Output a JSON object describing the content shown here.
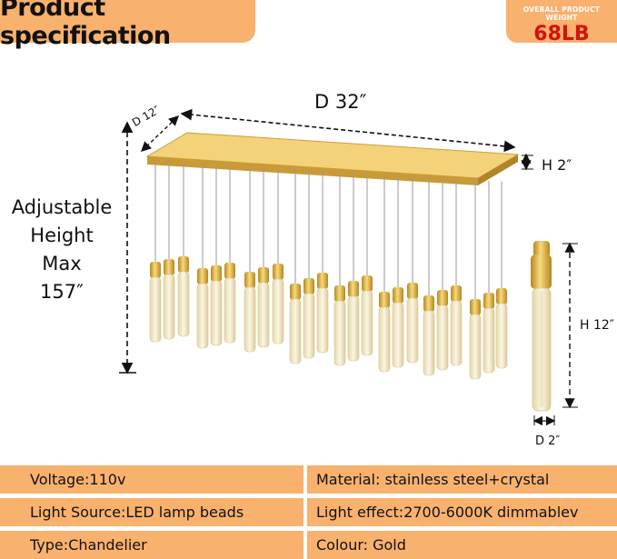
{
  "header": {
    "title": "Product specification",
    "weight_label": "OVERALL PRODUCT WEIGHT",
    "weight_value": "68LB"
  },
  "dimensions": {
    "depth_32": "D 32″",
    "depth_12": "D 12″",
    "height_canopy": "H 2″",
    "height_pendant": "H 12″",
    "depth_pendant": "D 2″"
  },
  "adjustable": {
    "line1": "Adjustable",
    "line2": "Height",
    "line3": "Max",
    "line4": "157″"
  },
  "specs": [
    {
      "left": "Voltage:110v",
      "right": "Material: stainless steel+crystal"
    },
    {
      "left": "Light Source:LED lamp beads",
      "right": "Light effect:2700-6000K dimmablev"
    },
    {
      "left": "Type:Chandelier",
      "right": "Colour: Gold"
    }
  ],
  "colors": {
    "banner": "#f9b16e",
    "weight_value": "#d4120c",
    "gold": "#e3b84a",
    "crystal": "#f4ecd2"
  }
}
